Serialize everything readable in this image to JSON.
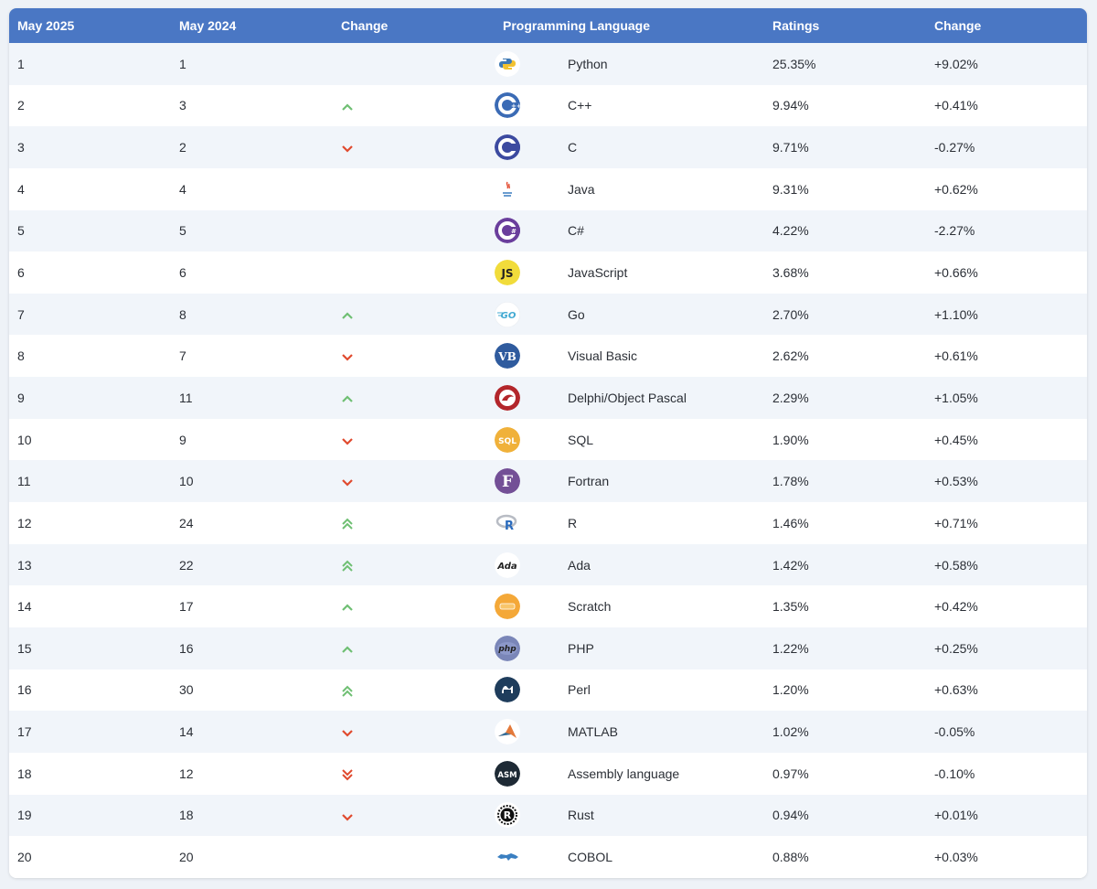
{
  "headers": [
    "May 2025",
    "May 2024",
    "Change",
    "Programming Language",
    "Ratings",
    "Change"
  ],
  "colors": {
    "header": "#4a77c4",
    "up": "#6fbf73",
    "down": "#e04a2e"
  },
  "rows": [
    {
      "rank2025": "1",
      "rank2024": "1",
      "trend": "none",
      "logo": "python-icon",
      "language": "Python",
      "rating": "25.35%",
      "change": "+9.02%"
    },
    {
      "rank2025": "2",
      "rank2024": "3",
      "trend": "up",
      "logo": "cpp-icon",
      "language": "C++",
      "rating": "9.94%",
      "change": "+0.41%"
    },
    {
      "rank2025": "3",
      "rank2024": "2",
      "trend": "down",
      "logo": "c-icon",
      "language": "C",
      "rating": "9.71%",
      "change": "-0.27%"
    },
    {
      "rank2025": "4",
      "rank2024": "4",
      "trend": "none",
      "logo": "java-icon",
      "language": "Java",
      "rating": "9.31%",
      "change": "+0.62%"
    },
    {
      "rank2025": "5",
      "rank2024": "5",
      "trend": "none",
      "logo": "csharp-icon",
      "language": "C#",
      "rating": "4.22%",
      "change": "-2.27%"
    },
    {
      "rank2025": "6",
      "rank2024": "6",
      "trend": "none",
      "logo": "javascript-icon",
      "language": "JavaScript",
      "rating": "3.68%",
      "change": "+0.66%"
    },
    {
      "rank2025": "7",
      "rank2024": "8",
      "trend": "up",
      "logo": "go-icon",
      "language": "Go",
      "rating": "2.70%",
      "change": "+1.10%"
    },
    {
      "rank2025": "8",
      "rank2024": "7",
      "trend": "down",
      "logo": "visual-basic-icon",
      "language": "Visual Basic",
      "rating": "2.62%",
      "change": "+0.61%"
    },
    {
      "rank2025": "9",
      "rank2024": "11",
      "trend": "up",
      "logo": "delphi-icon",
      "language": "Delphi/Object Pascal",
      "rating": "2.29%",
      "change": "+1.05%"
    },
    {
      "rank2025": "10",
      "rank2024": "9",
      "trend": "down",
      "logo": "sql-icon",
      "language": "SQL",
      "rating": "1.90%",
      "change": "+0.45%"
    },
    {
      "rank2025": "11",
      "rank2024": "10",
      "trend": "down",
      "logo": "fortran-icon",
      "language": "Fortran",
      "rating": "1.78%",
      "change": "+0.53%"
    },
    {
      "rank2025": "12",
      "rank2024": "24",
      "trend": "up2",
      "logo": "r-icon",
      "language": "R",
      "rating": "1.46%",
      "change": "+0.71%"
    },
    {
      "rank2025": "13",
      "rank2024": "22",
      "trend": "up2",
      "logo": "ada-icon",
      "language": "Ada",
      "rating": "1.42%",
      "change": "+0.58%"
    },
    {
      "rank2025": "14",
      "rank2024": "17",
      "trend": "up",
      "logo": "scratch-icon",
      "language": "Scratch",
      "rating": "1.35%",
      "change": "+0.42%"
    },
    {
      "rank2025": "15",
      "rank2024": "16",
      "trend": "up",
      "logo": "php-icon",
      "language": "PHP",
      "rating": "1.22%",
      "change": "+0.25%"
    },
    {
      "rank2025": "16",
      "rank2024": "30",
      "trend": "up2",
      "logo": "perl-icon",
      "language": "Perl",
      "rating": "1.20%",
      "change": "+0.63%"
    },
    {
      "rank2025": "17",
      "rank2024": "14",
      "trend": "down",
      "logo": "matlab-icon",
      "language": "MATLAB",
      "rating": "1.02%",
      "change": "-0.05%"
    },
    {
      "rank2025": "18",
      "rank2024": "12",
      "trend": "down2",
      "logo": "assembly-icon",
      "language": "Assembly language",
      "rating": "0.97%",
      "change": "-0.10%"
    },
    {
      "rank2025": "19",
      "rank2024": "18",
      "trend": "down",
      "logo": "rust-icon",
      "language": "Rust",
      "rating": "0.94%",
      "change": "+0.01%"
    },
    {
      "rank2025": "20",
      "rank2024": "20",
      "trend": "none",
      "logo": "cobol-icon",
      "language": "COBOL",
      "rating": "0.88%",
      "change": "+0.03%"
    }
  ]
}
